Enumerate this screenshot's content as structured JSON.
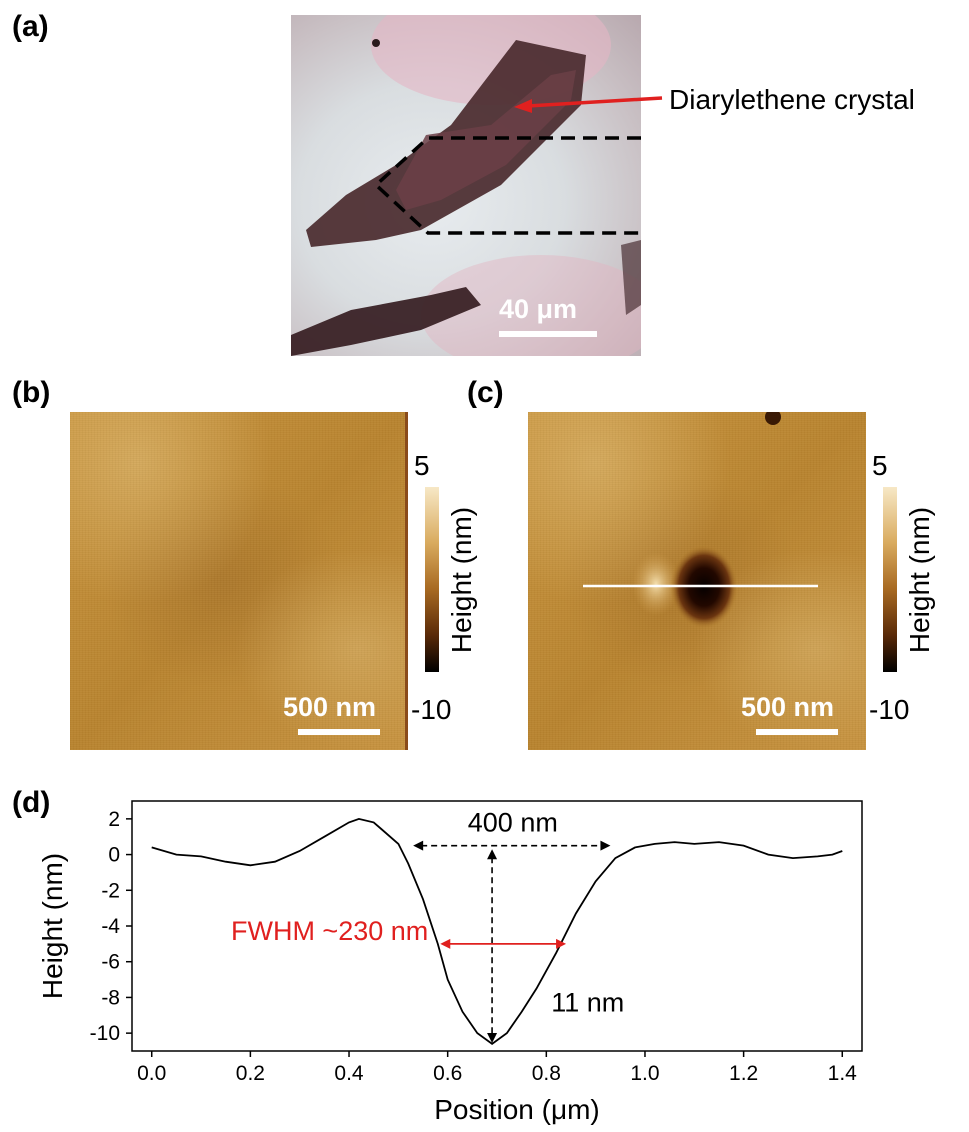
{
  "panels": {
    "a": {
      "label": "(a)",
      "annotation": "Diarylethene crystal",
      "scale_bar": "40 μm"
    },
    "b": {
      "label": "(b)",
      "scale_bar": "500 nm",
      "colorbar": {
        "max": "5",
        "min": "-10",
        "label": "Height (nm)"
      }
    },
    "c": {
      "label": "(c)",
      "scale_bar": "500 nm",
      "colorbar": {
        "max": "5",
        "min": "-10",
        "label": "Height (nm)"
      }
    },
    "d": {
      "label": "(d)",
      "annotations": {
        "width": "400 nm",
        "fwhm": "FWHM ~230 nm",
        "depth": "11 nm"
      }
    }
  },
  "colors": {
    "afm": "#c08a38",
    "arrow_red": "#e0201f",
    "fwhm_text": "#e0201f"
  },
  "chart_data": {
    "type": "line",
    "title": "",
    "xlabel": "Position (μm)",
    "ylabel": "Height (nm)",
    "xlim": [
      -0.04,
      1.44
    ],
    "ylim": [
      -11,
      3
    ],
    "xticks": [
      0.0,
      0.2,
      0.4,
      0.6,
      0.8,
      1.0,
      1.2,
      1.4
    ],
    "xtick_labels": [
      "0.0",
      "0.2",
      "0.4",
      "0.6",
      "0.8",
      "1.0",
      "1.2",
      "1.4"
    ],
    "yticks": [
      2,
      0,
      -2,
      -4,
      -6,
      -8,
      -10
    ],
    "ytick_labels": [
      "2",
      "0",
      "-2",
      "-4",
      "-6",
      "-8",
      "-10"
    ],
    "grid": false,
    "series": [
      {
        "x": [
          0.0,
          0.05,
          0.1,
          0.15,
          0.2,
          0.25,
          0.3,
          0.35,
          0.4,
          0.42,
          0.45,
          0.5,
          0.52,
          0.55,
          0.58,
          0.6,
          0.63,
          0.66,
          0.69,
          0.72,
          0.75,
          0.78,
          0.82,
          0.86,
          0.9,
          0.94,
          0.98,
          1.02,
          1.06,
          1.1,
          1.15,
          1.2,
          1.25,
          1.3,
          1.35,
          1.38,
          1.4
        ],
        "y": [
          0.4,
          0.0,
          -0.1,
          -0.4,
          -0.6,
          -0.4,
          0.2,
          1.0,
          1.8,
          2.0,
          1.8,
          0.6,
          -0.5,
          -2.5,
          -5.0,
          -7.0,
          -8.8,
          -10.0,
          -10.6,
          -10.0,
          -8.8,
          -7.5,
          -5.5,
          -3.3,
          -1.5,
          -0.2,
          0.4,
          0.6,
          0.7,
          0.6,
          0.7,
          0.5,
          0.0,
          -0.2,
          -0.1,
          0.0,
          0.2
        ]
      }
    ]
  }
}
